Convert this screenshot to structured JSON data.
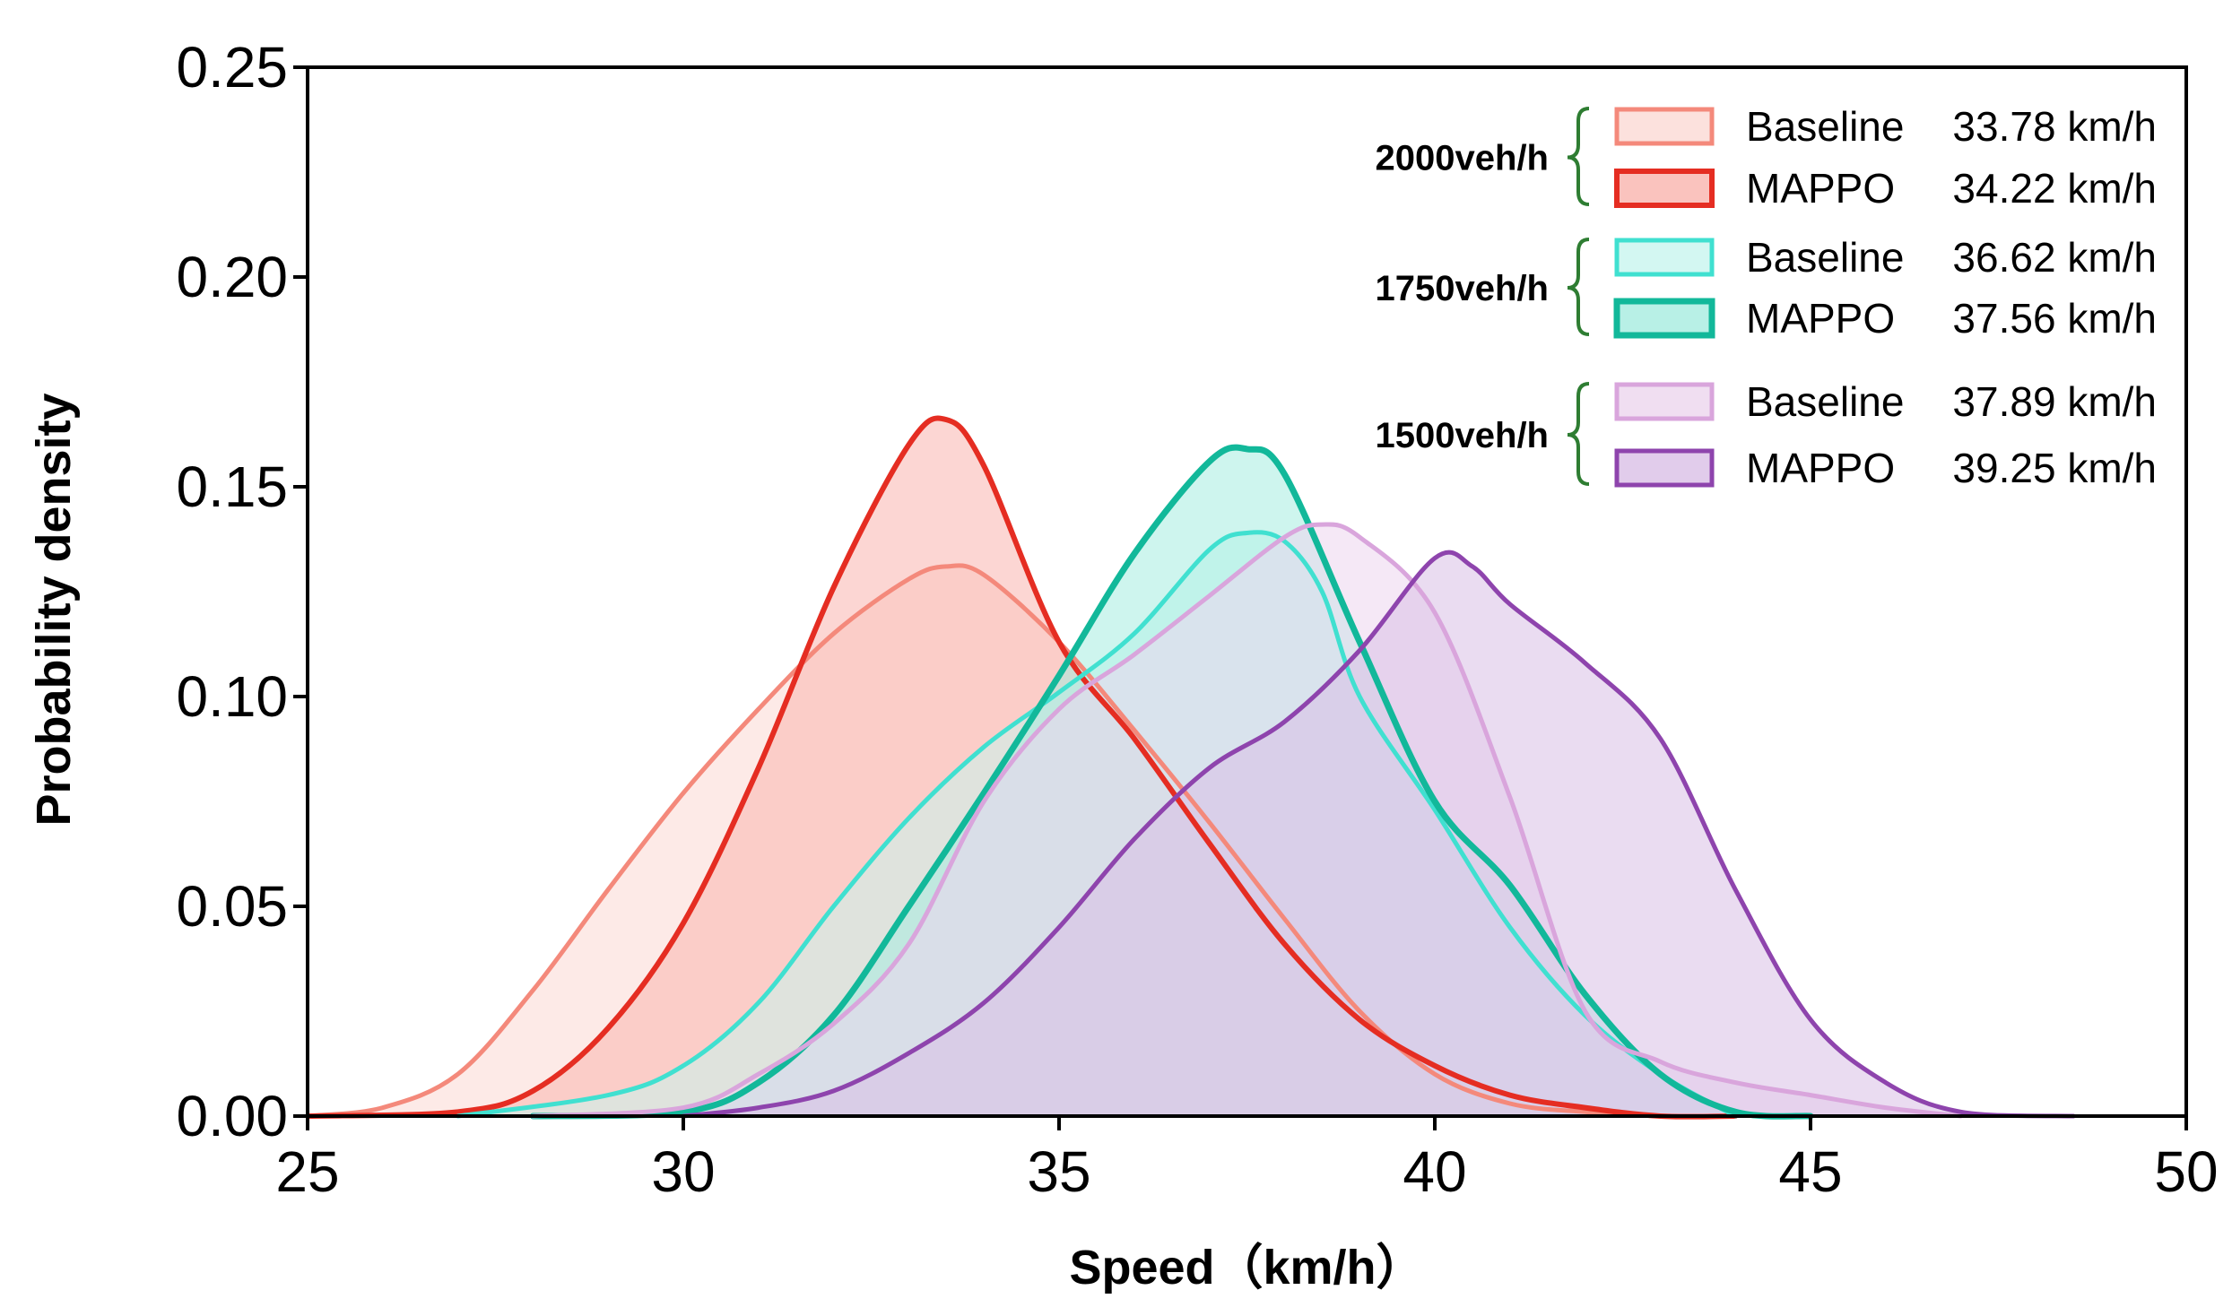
{
  "chart_data": {
    "type": "area",
    "xlabel": "Speed（km/h）",
    "ylabel": "Probability density",
    "xlim": [
      25,
      50
    ],
    "ylim": [
      0,
      0.25
    ],
    "xticks": [
      "25",
      "30",
      "35",
      "40",
      "45",
      "50"
    ],
    "yticks": [
      "0.00",
      "0.05",
      "0.10",
      "0.15",
      "0.20",
      "0.25"
    ],
    "grid": false,
    "legend_position": "top-right",
    "groups": [
      {
        "label": "2000veh/h",
        "brace_color": "#2e7d32",
        "series": [
          {
            "name": "Baseline",
            "mean_label": "33.78 km/h",
            "color": "#f4897b",
            "fill": "#fbd9d4",
            "fill_opacity": 0.55,
            "stroke_width": 5,
            "x": [
              25,
              26,
              27,
              28,
              29,
              30,
              31,
              32,
              33,
              33.5,
              34,
              35,
              36,
              37,
              38,
              39,
              40,
              41,
              42,
              43,
              44
            ],
            "y": [
              0.0,
              0.002,
              0.01,
              0.03,
              0.054,
              0.077,
              0.097,
              0.115,
              0.128,
              0.131,
              0.129,
              0.113,
              0.092,
              0.07,
              0.047,
              0.025,
              0.01,
              0.003,
              0.001,
              0.0,
              0.0
            ]
          },
          {
            "name": "MAPPO",
            "mean_label": "34.22 km/h",
            "color": "#e52d22",
            "fill": "#f9b4ae",
            "fill_opacity": 0.55,
            "stroke_width": 6,
            "x": [
              25,
              27,
              28,
              29,
              30,
              31,
              32,
              33,
              33.5,
              34,
              35,
              36,
              37,
              38,
              39,
              40,
              41,
              42,
              43,
              44
            ],
            "y": [
              0.0,
              0.001,
              0.006,
              0.021,
              0.046,
              0.083,
              0.126,
              0.16,
              0.166,
              0.155,
              0.113,
              0.09,
              0.065,
              0.041,
              0.023,
              0.012,
              0.005,
              0.002,
              0.0,
              0.0
            ]
          }
        ]
      },
      {
        "label": "1750veh/h",
        "brace_color": "#2e7d32",
        "series": [
          {
            "name": "Baseline",
            "mean_label": "36.62 km/h",
            "color": "#40e0d0",
            "fill": "#c8f5ef",
            "fill_opacity": 0.55,
            "stroke_width": 5,
            "x": [
              27,
              29,
              30,
              31,
              32,
              33,
              34,
              35,
              36,
              37,
              37.5,
              38,
              38.5,
              39,
              40,
              41,
              42,
              43,
              44
            ],
            "y": [
              0.0,
              0.005,
              0.012,
              0.027,
              0.05,
              0.071,
              0.088,
              0.101,
              0.115,
              0.135,
              0.139,
              0.137,
              0.125,
              0.1,
              0.073,
              0.045,
              0.024,
              0.01,
              0.0
            ]
          },
          {
            "name": "MAPPO",
            "mean_label": "37.56 km/h",
            "color": "#12b89a",
            "fill": "#a6ece0",
            "fill_opacity": 0.55,
            "stroke_width": 7,
            "x": [
              28,
              30,
              31,
              32,
              33,
              34,
              35,
              36,
              37,
              37.5,
              38,
              39,
              40,
              41,
              42,
              43,
              44,
              45
            ],
            "y": [
              0.0,
              0.001,
              0.008,
              0.024,
              0.05,
              0.077,
              0.105,
              0.134,
              0.156,
              0.159,
              0.153,
              0.113,
              0.075,
              0.055,
              0.029,
              0.01,
              0.001,
              0.0
            ]
          }
        ]
      },
      {
        "label": "1500veh/h",
        "brace_color": "#2e7d32",
        "series": [
          {
            "name": "Baseline",
            "mean_label": "37.89 km/h",
            "color": "#d9a5dc",
            "fill": "#ecd6ee",
            "fill_opacity": 0.55,
            "stroke_width": 5,
            "x": [
              28,
              30,
              31,
              32,
              33,
              34,
              35,
              36,
              37,
              38,
              38.5,
              39,
              40,
              41,
              42,
              43,
              44,
              45,
              46,
              47
            ],
            "y": [
              0.0,
              0.002,
              0.01,
              0.022,
              0.041,
              0.075,
              0.097,
              0.11,
              0.124,
              0.138,
              0.141,
              0.138,
              0.12,
              0.076,
              0.025,
              0.013,
              0.008,
              0.005,
              0.002,
              0.0
            ]
          },
          {
            "name": "MAPPO",
            "mean_label": "39.25 km/h",
            "color": "#8e44ad",
            "fill": "#d9bfe6",
            "fill_opacity": 0.55,
            "stroke_width": 5,
            "x": [
              30,
              31,
              32,
              33,
              34,
              35,
              36,
              37,
              38,
              39,
              40,
              40.5,
              41,
              42,
              43,
              44,
              45,
              46,
              47,
              48.5
            ],
            "y": [
              0.0,
              0.002,
              0.006,
              0.015,
              0.027,
              0.045,
              0.066,
              0.083,
              0.094,
              0.111,
              0.133,
              0.131,
              0.122,
              0.108,
              0.09,
              0.054,
              0.023,
              0.008,
              0.001,
              0.0
            ]
          }
        ]
      }
    ]
  }
}
